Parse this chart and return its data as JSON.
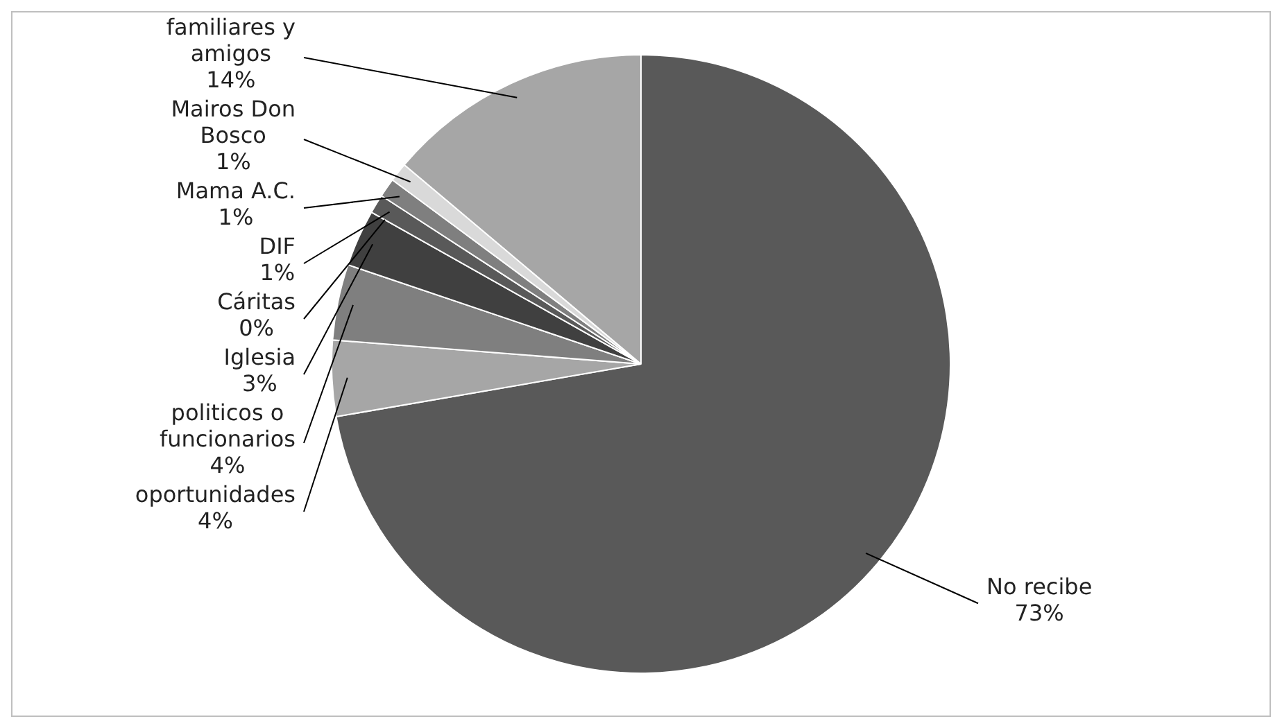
{
  "chart_data": {
    "type": "pie",
    "categories": [
      "No recibe",
      "oportunidades",
      "politicos o funcionarios",
      "Iglesia",
      "Cáritas",
      "DIF",
      "Mama A.C.",
      "Mairos Don Bosco",
      "familiares y amigos"
    ],
    "values": [
      73,
      4,
      4,
      3,
      0,
      1,
      1,
      1,
      14
    ],
    "value_labels": [
      "73%",
      "4%",
      "4%",
      "3%",
      "0%",
      "1%",
      "1%",
      "1%",
      "14%"
    ],
    "colors": [
      "#595959",
      "#a6a6a6",
      "#7f7f7f",
      "#404040",
      "#262626",
      "#595959",
      "#7f7f7f",
      "#d9d9d9",
      "#a6a6a6"
    ],
    "legend": false
  }
}
